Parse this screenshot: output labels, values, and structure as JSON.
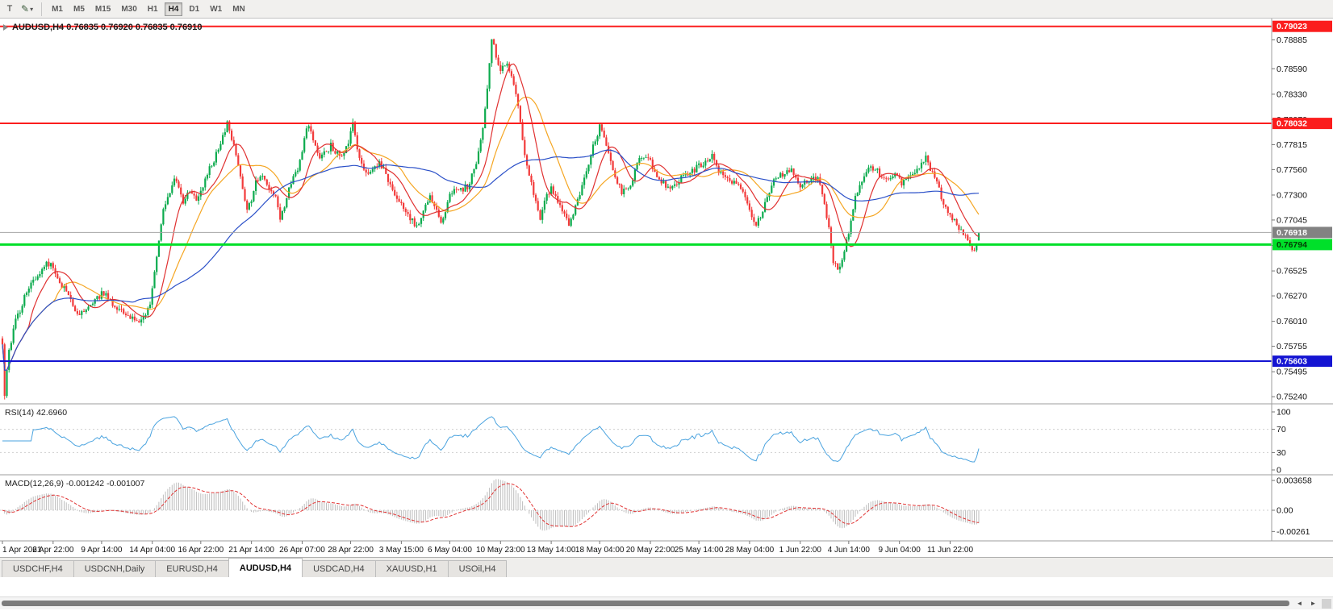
{
  "icons": {
    "pencil": "✎",
    "caret_down": "▾",
    "scroll_left": "◄",
    "scroll_right": "►"
  },
  "toolbar": {
    "t_label": "T",
    "timeframes": [
      "M1",
      "M5",
      "M15",
      "M30",
      "H1",
      "H4",
      "D1",
      "W1",
      "MN"
    ],
    "active": "H4"
  },
  "chart": {
    "symbol_ohlc": "AUDUSD,H4 0.76835 0.76920 0.76835 0.76910"
  },
  "colors": {
    "up": "#0cab4e",
    "down": "#f23a3a",
    "rsi": "#4aa3df",
    "macd_hist": "#bdbdbd",
    "macd_signal": "#e03131",
    "axis_text": "#111111",
    "grid": "#9e9e9e",
    "price_line": "#a6a6a6"
  },
  "chart_data": {
    "type": "candlestick",
    "symbol": "AUDUSD",
    "timeframe": "H4",
    "current": {
      "open": 0.76835,
      "high": 0.7692,
      "low": 0.76835,
      "close": 0.7691,
      "bid": 0.76918
    },
    "y_range": [
      0.752,
      0.7907
    ],
    "y_ticks": [
      "0.78885",
      "0.78590",
      "0.78330",
      "0.78070",
      "0.77815",
      "0.77560",
      "0.77300",
      "0.77045",
      "0.76785",
      "0.76525",
      "0.76270",
      "0.76010",
      "0.75755",
      "0.75495",
      "0.75240"
    ],
    "levels": [
      {
        "value": 0.79023,
        "label": "0.79023",
        "color": "#fb1d1d",
        "width": 2,
        "text": "#ffffff"
      },
      {
        "value": 0.78032,
        "label": "0.78032",
        "color": "#fb1d1d",
        "width": 2,
        "text": "#ffffff"
      },
      {
        "value": 0.76794,
        "label": "0.76794",
        "color": "#00e02a",
        "width": 3,
        "text": "#053c05"
      },
      {
        "value": 0.75603,
        "label": "0.75603",
        "color": "#1414d2",
        "width": 2,
        "text": "#ffffff"
      }
    ],
    "bid_badge": {
      "value": 0.76918,
      "label": "0.76918",
      "color": "#828282",
      "text": "#ffffff"
    },
    "x_labels": [
      {
        "i": 0,
        "t": "1 Apr 2021"
      },
      {
        "i": 23,
        "t": "6 Apr 22:00"
      },
      {
        "i": 45,
        "t": "9 Apr 14:00"
      },
      {
        "i": 68,
        "t": "14 Apr 04:00"
      },
      {
        "i": 90,
        "t": "16 Apr 22:00"
      },
      {
        "i": 113,
        "t": "21 Apr 14:00"
      },
      {
        "i": 136,
        "t": "26 Apr 07:00"
      },
      {
        "i": 158,
        "t": "28 Apr 22:00"
      },
      {
        "i": 181,
        "t": "3 May 15:00"
      },
      {
        "i": 203,
        "t": "6 May 04:00"
      },
      {
        "i": 226,
        "t": "10 May 23:00"
      },
      {
        "i": 249,
        "t": "13 May 14:00"
      },
      {
        "i": 271,
        "t": "18 May 04:00"
      },
      {
        "i": 294,
        "t": "20 May 22:00"
      },
      {
        "i": 316,
        "t": "25 May 14:00"
      },
      {
        "i": 339,
        "t": "28 May 04:00"
      },
      {
        "i": 362,
        "t": "1 Jun 22:00"
      },
      {
        "i": 384,
        "t": "4 Jun 14:00"
      },
      {
        "i": 407,
        "t": "9 Jun 04:00"
      },
      {
        "i": 430,
        "t": "11 Jun 22:00"
      }
    ],
    "num_candles": 444,
    "jitter": 0.00035,
    "wick": 0.0004,
    "seed": 77,
    "anchors": [
      [
        0,
        0.7578
      ],
      [
        1,
        0.7528
      ],
      [
        3,
        0.7572
      ],
      [
        6,
        0.7601
      ],
      [
        10,
        0.7625
      ],
      [
        14,
        0.7644
      ],
      [
        18,
        0.7655
      ],
      [
        22,
        0.7662
      ],
      [
        26,
        0.7642
      ],
      [
        30,
        0.7628
      ],
      [
        34,
        0.7608
      ],
      [
        38,
        0.7612
      ],
      [
        42,
        0.7625
      ],
      [
        46,
        0.763
      ],
      [
        50,
        0.7618
      ],
      [
        54,
        0.7611
      ],
      [
        58,
        0.7605
      ],
      [
        62,
        0.7601
      ],
      [
        65,
        0.7607
      ],
      [
        67,
        0.7618
      ],
      [
        70,
        0.7668
      ],
      [
        73,
        0.7715
      ],
      [
        76,
        0.7735
      ],
      [
        78,
        0.775
      ],
      [
        80,
        0.7739
      ],
      [
        82,
        0.7723
      ],
      [
        85,
        0.7736
      ],
      [
        88,
        0.7723
      ],
      [
        91,
        0.7739
      ],
      [
        94,
        0.7756
      ],
      [
        97,
        0.7772
      ],
      [
        100,
        0.7792
      ],
      [
        102,
        0.7803
      ],
      [
        104,
        0.7789
      ],
      [
        107,
        0.7763
      ],
      [
        109,
        0.7739
      ],
      [
        111,
        0.7713
      ],
      [
        113,
        0.7726
      ],
      [
        115,
        0.7742
      ],
      [
        118,
        0.7749
      ],
      [
        121,
        0.7739
      ],
      [
        124,
        0.7729
      ],
      [
        126,
        0.7703
      ],
      [
        129,
        0.7729
      ],
      [
        132,
        0.7749
      ],
      [
        135,
        0.7763
      ],
      [
        137,
        0.7789
      ],
      [
        139,
        0.7803
      ],
      [
        141,
        0.7783
      ],
      [
        144,
        0.7769
      ],
      [
        147,
        0.7773
      ],
      [
        149,
        0.7783
      ],
      [
        151,
        0.7773
      ],
      [
        154,
        0.7769
      ],
      [
        157,
        0.7783
      ],
      [
        159,
        0.7801
      ],
      [
        161,
        0.7776
      ],
      [
        164,
        0.7756
      ],
      [
        166,
        0.7749
      ],
      [
        169,
        0.7759
      ],
      [
        171,
        0.7763
      ],
      [
        174,
        0.7753
      ],
      [
        177,
        0.7733
      ],
      [
        180,
        0.7723
      ],
      [
        183,
        0.7713
      ],
      [
        186,
        0.7703
      ],
      [
        188,
        0.7696
      ],
      [
        191,
        0.7716
      ],
      [
        194,
        0.7729
      ],
      [
        196,
        0.7719
      ],
      [
        199,
        0.7701
      ],
      [
        202,
        0.7723
      ],
      [
        205,
        0.7739
      ],
      [
        208,
        0.7736
      ],
      [
        211,
        0.7739
      ],
      [
        213,
        0.7749
      ],
      [
        215,
        0.7763
      ],
      [
        217,
        0.7783
      ],
      [
        219,
        0.7816
      ],
      [
        221,
        0.7863
      ],
      [
        222,
        0.7888
      ],
      [
        224,
        0.7873
      ],
      [
        226,
        0.7857
      ],
      [
        229,
        0.7863
      ],
      [
        231,
        0.7849
      ],
      [
        233,
        0.7833
      ],
      [
        235,
        0.7803
      ],
      [
        237,
        0.7773
      ],
      [
        240,
        0.7743
      ],
      [
        242,
        0.7723
      ],
      [
        244,
        0.7703
      ],
      [
        246,
        0.7726
      ],
      [
        249,
        0.7736
      ],
      [
        252,
        0.7723
      ],
      [
        255,
        0.7713
      ],
      [
        257,
        0.7699
      ],
      [
        260,
        0.7719
      ],
      [
        263,
        0.7739
      ],
      [
        266,
        0.7759
      ],
      [
        268,
        0.7779
      ],
      [
        271,
        0.7799
      ],
      [
        273,
        0.7786
      ],
      [
        275,
        0.7773
      ],
      [
        278,
        0.7749
      ],
      [
        281,
        0.7733
      ],
      [
        284,
        0.7737
      ],
      [
        287,
        0.7753
      ],
      [
        289,
        0.7767
      ],
      [
        292,
        0.7771
      ],
      [
        295,
        0.7759
      ],
      [
        298,
        0.7746
      ],
      [
        301,
        0.7739
      ],
      [
        304,
        0.7737
      ],
      [
        307,
        0.7745
      ],
      [
        310,
        0.7751
      ],
      [
        313,
        0.7755
      ],
      [
        316,
        0.7759
      ],
      [
        319,
        0.7763
      ],
      [
        322,
        0.7771
      ],
      [
        324,
        0.7759
      ],
      [
        327,
        0.7749
      ],
      [
        330,
        0.7743
      ],
      [
        333,
        0.7741
      ],
      [
        336,
        0.7731
      ],
      [
        339,
        0.7713
      ],
      [
        342,
        0.7701
      ],
      [
        344,
        0.7705
      ],
      [
        347,
        0.7727
      ],
      [
        350,
        0.7743
      ],
      [
        353,
        0.7749
      ],
      [
        356,
        0.7755
      ],
      [
        359,
        0.7753
      ],
      [
        362,
        0.7741
      ],
      [
        365,
        0.7745
      ],
      [
        368,
        0.7751
      ],
      [
        371,
        0.7743
      ],
      [
        373,
        0.7719
      ],
      [
        375,
        0.7699
      ],
      [
        377,
        0.7663
      ],
      [
        379,
        0.7651
      ],
      [
        381,
        0.7663
      ],
      [
        383,
        0.7681
      ],
      [
        385,
        0.7703
      ],
      [
        387,
        0.7729
      ],
      [
        390,
        0.7743
      ],
      [
        393,
        0.7759
      ],
      [
        396,
        0.7757
      ],
      [
        399,
        0.7747
      ],
      [
        402,
        0.7749
      ],
      [
        405,
        0.7753
      ],
      [
        408,
        0.7743
      ],
      [
        411,
        0.7747
      ],
      [
        414,
        0.7753
      ],
      [
        417,
        0.7761
      ],
      [
        419,
        0.7767
      ],
      [
        421,
        0.7757
      ],
      [
        424,
        0.7741
      ],
      [
        427,
        0.7721
      ],
      [
        430,
        0.7707
      ],
      [
        433,
        0.7701
      ],
      [
        436,
        0.7691
      ],
      [
        439,
        0.7681
      ],
      [
        441,
        0.7673
      ],
      [
        443,
        0.7691
      ]
    ],
    "ma_lines": [
      {
        "period": 24,
        "color": "#f5a623"
      },
      {
        "period": 12,
        "color": "#e03131"
      },
      {
        "period": 60,
        "color": "#2b50c8"
      }
    ],
    "rsi": {
      "label": "RSI(14)",
      "value": "42.6960",
      "period": 14,
      "ticks": [
        100,
        70,
        30,
        0
      ]
    },
    "macd": {
      "label": "MACD(12,26,9)",
      "values": "-0.001242 -0.001007",
      "fast": 12,
      "slow": 26,
      "signal": 9,
      "ticks": [
        {
          "v": 0.003658,
          "t": "0.003658"
        },
        {
          "v": 0,
          "t": "0.00"
        },
        {
          "v": -0.00261,
          "t": "-0.00261"
        }
      ]
    }
  },
  "tabs": {
    "items": [
      "USDCHF,H4",
      "USDCNH,Daily",
      "EURUSD,H4",
      "AUDUSD,H4",
      "USDCAD,H4",
      "XAUUSD,H1",
      "USOil,H4"
    ],
    "active_index": 3
  }
}
